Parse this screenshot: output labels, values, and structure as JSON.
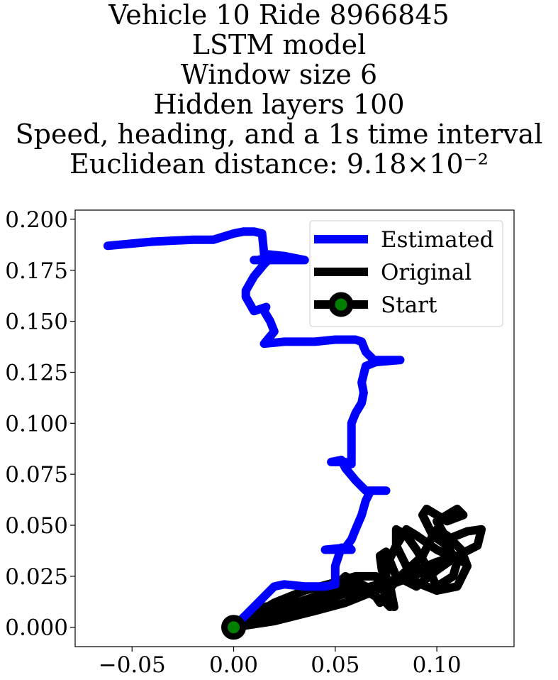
{
  "chart_data": {
    "type": "line",
    "title_lines": [
      "Vehicle 10 Ride 8966845",
      "LSTM model",
      "Window size 6",
      "Hidden layers 100",
      "Speed, heading, and a 1s time interval",
      "Euclidean distance: 9.18×10⁻²"
    ],
    "xlabel": "",
    "ylabel": "",
    "xlim": [
      -0.078,
      0.138
    ],
    "ylim": [
      -0.0095,
      0.2045
    ],
    "x_ticks": [
      -0.05,
      0.0,
      0.05,
      0.1
    ],
    "x_tick_labels": [
      "−0.05",
      "0.00",
      "0.05",
      "0.10"
    ],
    "y_ticks": [
      0.0,
      0.025,
      0.05,
      0.075,
      0.1,
      0.125,
      0.15,
      0.175,
      0.2
    ],
    "y_tick_labels": [
      "0.000",
      "0.025",
      "0.050",
      "0.075",
      "0.100",
      "0.125",
      "0.150",
      "0.175",
      "0.200"
    ],
    "grid": false,
    "legend": {
      "placement": "top-right",
      "entries": [
        "Estimated",
        "Original",
        "Start"
      ]
    },
    "series": [
      {
        "name": "Estimated",
        "color": "#0000ff",
        "x": [
          0.0,
          0.01,
          0.02,
          0.025,
          0.035,
          0.045,
          0.05,
          0.05,
          0.053,
          0.057,
          0.058,
          0.056,
          0.05,
          0.045,
          0.055,
          0.058,
          0.06,
          0.063,
          0.065,
          0.067,
          0.068,
          0.075,
          0.065,
          0.06,
          0.055,
          0.053,
          0.048,
          0.055,
          0.058,
          0.058,
          0.058,
          0.06,
          0.063,
          0.064,
          0.063,
          0.065,
          0.07,
          0.07,
          0.073,
          0.082,
          0.07,
          0.065,
          0.063,
          0.06,
          0.05,
          0.04,
          0.025,
          0.015,
          0.02,
          0.018,
          0.015,
          0.016,
          0.01,
          0.006,
          0.006,
          0.01,
          0.015,
          0.017,
          0.015,
          0.012,
          0.01,
          0.02,
          0.035,
          0.025,
          0.015,
          0.014,
          0.01,
          0.005,
          0.0,
          -0.01,
          -0.02,
          -0.04,
          -0.062
        ],
        "y": [
          0.0,
          0.01,
          0.02,
          0.021,
          0.02,
          0.02,
          0.021,
          0.03,
          0.039,
          0.039,
          0.038,
          0.038,
          0.038,
          0.038,
          0.039,
          0.043,
          0.048,
          0.055,
          0.062,
          0.066,
          0.067,
          0.067,
          0.067,
          0.072,
          0.078,
          0.082,
          0.081,
          0.081,
          0.08,
          0.09,
          0.1,
          0.105,
          0.11,
          0.115,
          0.12,
          0.128,
          0.13,
          0.131,
          0.131,
          0.131,
          0.13,
          0.135,
          0.14,
          0.141,
          0.141,
          0.14,
          0.14,
          0.139,
          0.145,
          0.15,
          0.155,
          0.157,
          0.155,
          0.162,
          0.165,
          0.172,
          0.178,
          0.18,
          0.181,
          0.18,
          0.18,
          0.18,
          0.18,
          0.182,
          0.183,
          0.193,
          0.194,
          0.194,
          0.193,
          0.19,
          0.19,
          0.189,
          0.187
        ]
      },
      {
        "name": "Original",
        "color": "#000000",
        "x": [
          0.0,
          0.02,
          0.04,
          0.055,
          0.065,
          0.075,
          0.088,
          0.1,
          0.11,
          0.113,
          0.1,
          0.09,
          0.085,
          0.08,
          0.075,
          0.075,
          0.079,
          0.077,
          0.073,
          0.072,
          0.075,
          0.08,
          0.09,
          0.1,
          0.11,
          0.12,
          0.122,
          0.115,
          0.105,
          0.1,
          0.11,
          0.113,
          0.105,
          0.095,
          0.093,
          0.098,
          0.105,
          0.11,
          0.108,
          0.1,
          0.095,
          0.09,
          0.085,
          0.08,
          0.08,
          0.085,
          0.09,
          0.1,
          0.11,
          0.115,
          0.112,
          0.105,
          0.1,
          0.098,
          0.093,
          0.082,
          0.076,
          0.072,
          0.07,
          0.065,
          0.055,
          0.048,
          0.04,
          0.03,
          0.015,
          0.005,
          0.0,
          0.012,
          0.025,
          0.04,
          0.055,
          0.065,
          0.075,
          0.077,
          0.075,
          0.073,
          0.07,
          0.06,
          0.05,
          0.035,
          0.02,
          0.0,
          0.02,
          0.04,
          0.06,
          0.075,
          0.085,
          0.09,
          0.095,
          0.1,
          0.103
        ],
        "y": [
          0.0,
          0.003,
          0.008,
          0.012,
          0.016,
          0.02,
          0.025,
          0.03,
          0.035,
          0.032,
          0.038,
          0.045,
          0.048,
          0.04,
          0.03,
          0.015,
          0.01,
          0.02,
          0.028,
          0.035,
          0.037,
          0.025,
          0.02,
          0.028,
          0.035,
          0.04,
          0.048,
          0.047,
          0.043,
          0.052,
          0.058,
          0.055,
          0.052,
          0.058,
          0.055,
          0.045,
          0.04,
          0.032,
          0.025,
          0.02,
          0.03,
          0.038,
          0.045,
          0.048,
          0.04,
          0.03,
          0.022,
          0.018,
          0.02,
          0.03,
          0.038,
          0.045,
          0.048,
          0.045,
          0.035,
          0.025,
          0.018,
          0.012,
          0.015,
          0.02,
          0.025,
          0.018,
          0.014,
          0.012,
          0.01,
          0.004,
          0.0,
          0.004,
          0.01,
          0.015,
          0.02,
          0.018,
          0.012,
          0.01,
          0.015,
          0.02,
          0.025,
          0.025,
          0.022,
          0.018,
          0.012,
          0.0,
          0.006,
          0.012,
          0.018,
          0.022,
          0.025,
          0.028,
          0.03,
          0.032,
          0.033
        ]
      }
    ],
    "start_point": {
      "x": 0.0,
      "y": 0.0,
      "edge_color": "#000000",
      "face_color": "#008000"
    }
  }
}
